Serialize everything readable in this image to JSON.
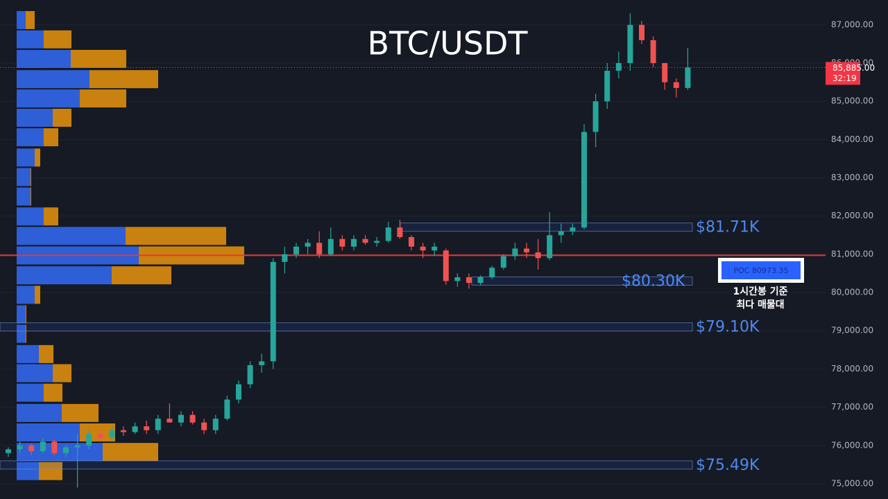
{
  "chart_data": {
    "type": "candlestick",
    "title": "BTC/USDT",
    "ylim": [
      74600,
      87650
    ],
    "yticks": [
      {
        "value": 75000,
        "label": "75,000.00"
      },
      {
        "value": 76000,
        "label": "76,000.00"
      },
      {
        "value": 77000,
        "label": "77,000.00"
      },
      {
        "value": 78000,
        "label": "78,000.00"
      },
      {
        "value": 79000,
        "label": "79,000.00"
      },
      {
        "value": 80000,
        "label": "80,000.00"
      },
      {
        "value": 81000,
        "label": "81,000.00"
      },
      {
        "value": 82000,
        "label": "82,000.00"
      },
      {
        "value": 83000,
        "label": "83,000.00"
      },
      {
        "value": 84000,
        "label": "84,000.00"
      },
      {
        "value": 85000,
        "label": "85,000.00"
      },
      {
        "value": 86000,
        "label": "86,000.00"
      },
      {
        "value": 87000,
        "label": "87,000.00"
      }
    ],
    "up_color": "#26a69a",
    "down_color": "#ef5350",
    "open": [
      75800,
      75900,
      76000,
      75850,
      76100,
      75800,
      75950,
      76000,
      76300,
      76200,
      76400,
      76350,
      76500,
      76400,
      76700,
      76600,
      76800,
      76600,
      76400,
      76700,
      77200,
      77600,
      78100,
      78200,
      80800,
      81000,
      81200,
      81300,
      81000,
      81400,
      81200,
      81400,
      81300,
      81350,
      81700,
      81450,
      81200,
      81100,
      81100,
      80300,
      80400,
      80250,
      80400,
      80650,
      80950,
      81150,
      81050,
      80900,
      81500,
      81600,
      81700,
      84200,
      85000,
      85800,
      86000,
      87000,
      86600,
      86000,
      85500,
      85350
    ],
    "high": [
      75950,
      76100,
      76050,
      76200,
      76150,
      76000,
      76300,
      76400,
      76400,
      76500,
      76500,
      76600,
      76650,
      76800,
      77100,
      76900,
      76900,
      76700,
      76800,
      77300,
      77700,
      78200,
      78400,
      80900,
      81200,
      81300,
      81400,
      81600,
      81700,
      81500,
      81500,
      81500,
      81450,
      81850,
      81900,
      81500,
      81300,
      81300,
      81150,
      80500,
      80500,
      80450,
      80700,
      81000,
      81300,
      81300,
      81400,
      82100,
      81800,
      81800,
      84400,
      85200,
      86000,
      86300,
      87300,
      87100,
      86700,
      86000,
      85600,
      86400
    ],
    "low": [
      75700,
      75800,
      75750,
      75800,
      75750,
      75700,
      74900,
      75900,
      76100,
      76100,
      76250,
      76300,
      76300,
      76300,
      76600,
      76500,
      76550,
      76300,
      76300,
      76650,
      77100,
      77500,
      77900,
      78000,
      80500,
      80900,
      81000,
      80900,
      80950,
      81100,
      81100,
      81250,
      81200,
      81300,
      81400,
      81100,
      80900,
      80950,
      80200,
      80150,
      80100,
      80200,
      80350,
      80600,
      80850,
      80900,
      80600,
      80850,
      81300,
      81500,
      81650,
      83800,
      84800,
      85600,
      85800,
      86500,
      85900,
      85300,
      85100,
      85300
    ],
    "close": [
      75900,
      76000,
      75850,
      76100,
      75800,
      75950,
      76000,
      76300,
      76200,
      76400,
      76350,
      76500,
      76400,
      76700,
      76600,
      76800,
      76600,
      76400,
      76700,
      77200,
      77600,
      78100,
      78200,
      80800,
      81000,
      81200,
      81300,
      81000,
      81400,
      81200,
      81400,
      81300,
      81350,
      81700,
      81450,
      81200,
      81100,
      81200,
      80300,
      80400,
      80250,
      80400,
      80650,
      80950,
      81150,
      81050,
      80900,
      81500,
      81600,
      81700,
      84200,
      85000,
      85800,
      86000,
      87000,
      86600,
      86000,
      85500,
      85350,
      85885
    ],
    "volume_profile": {
      "prices": [
        87125,
        86620,
        86110,
        85580,
        85075,
        84570,
        84060,
        83530,
        83020,
        82510,
        81990,
        81480,
        80970,
        80450,
        79940,
        79430,
        78920,
        78390,
        77890,
        77380,
        76850,
        76340,
        75830,
        75330
      ],
      "buy": [
        13,
        39,
        78,
        105,
        91,
        52,
        39,
        26,
        20,
        20,
        39,
        157,
        176,
        137,
        26,
        13,
        13,
        32,
        52,
        39,
        65,
        91,
        124,
        32
      ],
      "sell": [
        13,
        40,
        80,
        99,
        67,
        27,
        21,
        8,
        1,
        1,
        21,
        145,
        152,
        86,
        8,
        1,
        1,
        21,
        27,
        27,
        53,
        51,
        80,
        34
      ],
      "buy_color": "#2e5fd6",
      "sell_color": "#c9820f"
    },
    "levels": [
      {
        "value": 81710,
        "label": "$81.71K"
      },
      {
        "value": 80300,
        "label": "$80.30K"
      },
      {
        "value": 79100,
        "label": "$79.10K"
      },
      {
        "value": 75490,
        "label": "$75.49K"
      }
    ],
    "poc": {
      "value": 80973.35,
      "label": "POC  80973.35"
    },
    "annotation": [
      "1시간봉 기준",
      "최다 매물대"
    ],
    "last_price": {
      "value": 85885,
      "label": "85,885.00"
    },
    "countdown": "32:19"
  }
}
